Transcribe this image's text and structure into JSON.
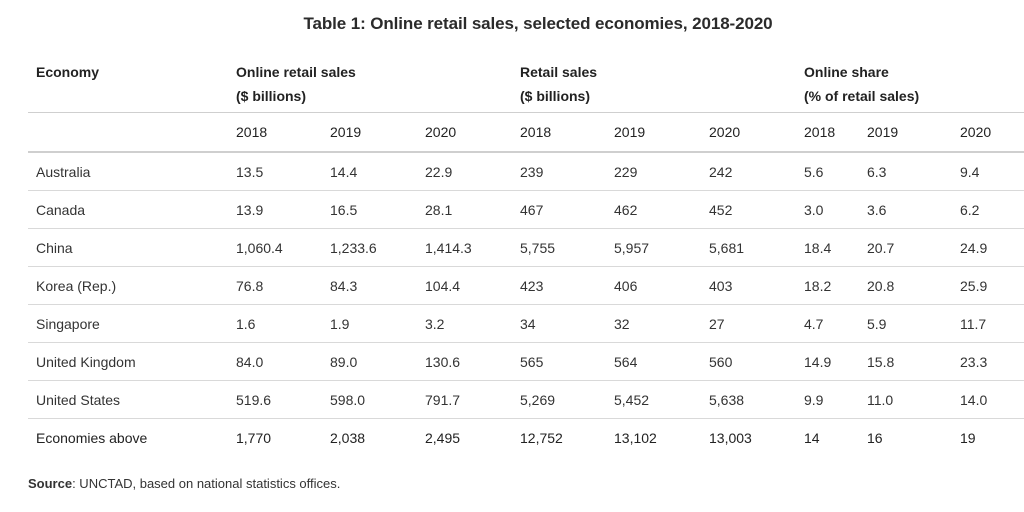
{
  "title": "Table 1: Online retail sales, selected economies, 2018-2020",
  "header": {
    "economy": "Economy",
    "groups": [
      {
        "name": "Online retail sales",
        "unit": "($ billions)"
      },
      {
        "name": "Retail sales",
        "unit": "($ billions)"
      },
      {
        "name": "Online share",
        "unit": "(% of retail sales)"
      }
    ],
    "years": [
      "2018",
      "2019",
      "2020",
      "2018",
      "2019",
      "2020",
      "2018",
      "2019",
      "2020"
    ]
  },
  "rows": [
    {
      "economy": "Australia",
      "values": [
        "13.5",
        "14.4",
        "22.9",
        "239",
        "229",
        "242",
        "5.6",
        "6.3",
        "9.4"
      ]
    },
    {
      "economy": "Canada",
      "values": [
        "13.9",
        "16.5",
        "28.1",
        "467",
        "462",
        "452",
        "3.0",
        "3.6",
        "6.2"
      ]
    },
    {
      "economy": "China",
      "values": [
        "1,060.4",
        "1,233.6",
        "1,414.3",
        "5,755",
        "5,957",
        "5,681",
        "18.4",
        "20.7",
        "24.9"
      ]
    },
    {
      "economy": "Korea (Rep.)",
      "values": [
        "76.8",
        "84.3",
        "104.4",
        "423",
        "406",
        "403",
        "18.2",
        "20.8",
        "25.9"
      ]
    },
    {
      "economy": "Singapore",
      "values": [
        "1.6",
        "1.9",
        "3.2",
        "34",
        "32",
        "27",
        "4.7",
        "5.9",
        "11.7"
      ]
    },
    {
      "economy": "United Kingdom",
      "values": [
        "84.0",
        "89.0",
        "130.6",
        "565",
        "564",
        "560",
        "14.9",
        "15.8",
        "23.3"
      ]
    },
    {
      "economy": "United States",
      "values": [
        "519.6",
        "598.0",
        "791.7",
        "5,269",
        "5,452",
        "5,638",
        "9.9",
        "11.0",
        "14.0"
      ]
    }
  ],
  "total": {
    "economy": "Economies above",
    "values": [
      "1,770",
      "2,038",
      "2,495",
      "12,752",
      "13,102",
      "13,003",
      "14",
      "16",
      "19"
    ]
  },
  "source": {
    "label": "Source",
    "text": ": UNCTAD, based on national statistics offices."
  }
}
